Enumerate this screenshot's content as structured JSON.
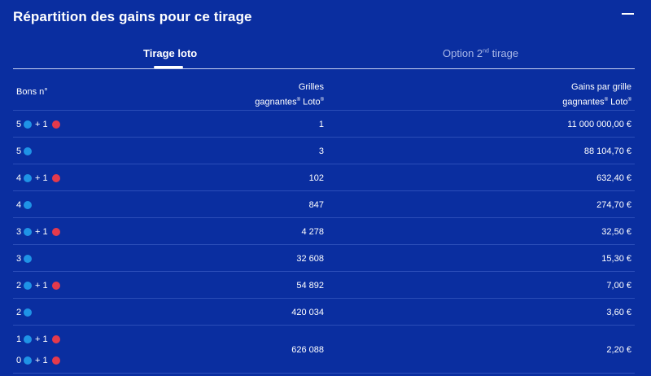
{
  "header": {
    "title": "Répartition des gains pour ce tirage"
  },
  "tabs": {
    "loto": "Tirage loto",
    "option_prefix": "Option 2",
    "option_sup": "nd",
    "option_suffix": " tirage"
  },
  "table": {
    "col_bons": "Bons n°",
    "col_grilles_line1": "Grilles",
    "col_grilles_line2": "gagnantes",
    "col_gains_line1": "Gains par grille",
    "col_gains_line2": "gagnantes",
    "loto_suffix": " Loto",
    "reg_mark": "®",
    "plus_label": "+ 1",
    "rows": [
      {
        "num": "5",
        "chance": true,
        "grilles": "1",
        "gains": "11 000 000,00 €"
      },
      {
        "num": "5",
        "chance": false,
        "grilles": "3",
        "gains": "88 104,70 €"
      },
      {
        "num": "4",
        "chance": true,
        "grilles": "102",
        "gains": "632,40 €"
      },
      {
        "num": "4",
        "chance": false,
        "grilles": "847",
        "gains": "274,70 €"
      },
      {
        "num": "3",
        "chance": true,
        "grilles": "4 278",
        "gains": "32,50 €"
      },
      {
        "num": "3",
        "chance": false,
        "grilles": "32 608",
        "gains": "15,30 €"
      },
      {
        "num": "2",
        "chance": true,
        "grilles": "54 892",
        "gains": "7,00 €"
      },
      {
        "num": "2",
        "chance": false,
        "grilles": "420 034",
        "gains": "3,60 €"
      },
      {
        "num": "1",
        "num2": "0",
        "chance": true,
        "grilles": "626 088",
        "gains": "2,20 €"
      }
    ]
  },
  "colors": {
    "background": "#0a2ea0",
    "ball_blue": "#1f93e6",
    "ball_red": "#e43a4c"
  }
}
